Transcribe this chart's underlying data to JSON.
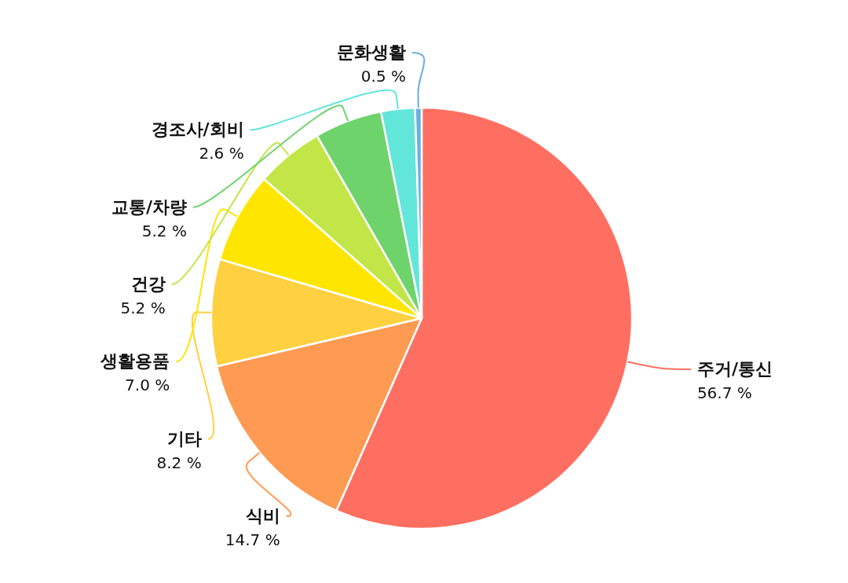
{
  "chart_data": {
    "type": "pie",
    "categories": [
      "주거/통신",
      "식비",
      "기타",
      "생활용품",
      "건강",
      "교통/차량",
      "경조사/회비",
      "문화생활"
    ],
    "values": [
      56.7,
      14.7,
      8.2,
      7.0,
      5.2,
      5.2,
      2.6,
      0.5
    ],
    "colors": [
      "#ff6f61",
      "#ff9a52",
      "#ffd03f",
      "#ffe600",
      "#c2e647",
      "#6fd36c",
      "#63e6da",
      "#6aaee0"
    ],
    "value_labels": [
      "56.7 %",
      "14.7 %",
      "8.2 %",
      "7.0 %",
      "5.2 %",
      "5.2 %",
      "2.6 %",
      "0.5 %"
    ]
  }
}
